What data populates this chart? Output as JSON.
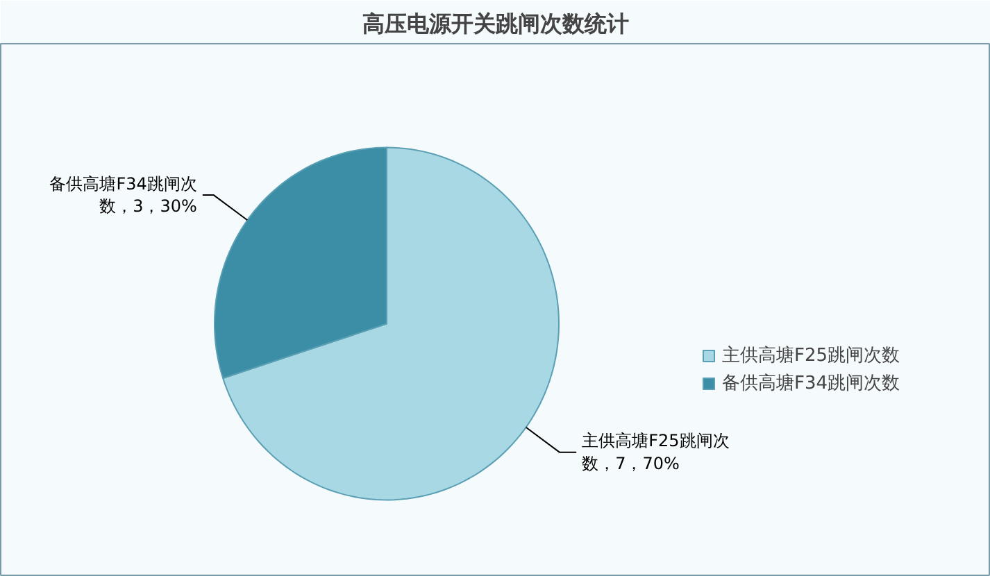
{
  "chart_data": {
    "type": "pie",
    "title": "高压电源开关跳闸次数统计",
    "categories": [
      "主供高塘F25跳闸次数",
      "备供高塘F34跳闸次数"
    ],
    "values": [
      7,
      3
    ],
    "colors": [
      "#a8d8e4",
      "#3b8ea5"
    ],
    "value_labels": [
      "主供高塘F25跳闸次数，7，70%",
      "备供高塘F34跳闸次数，3，30%"
    ],
    "legend": "right"
  }
}
